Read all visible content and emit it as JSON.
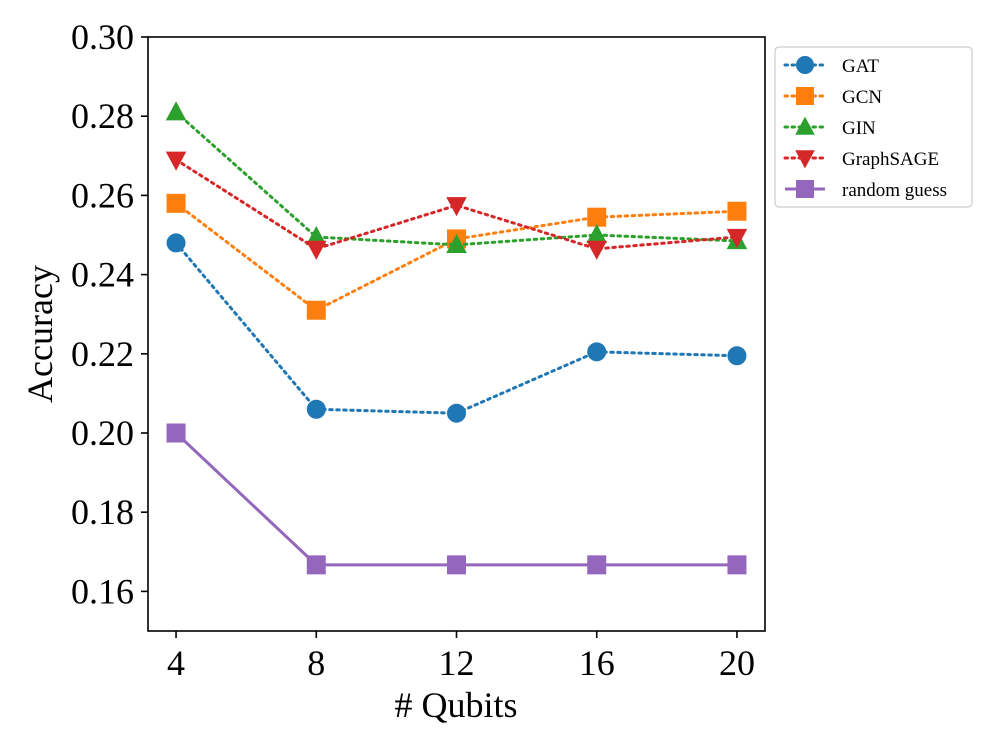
{
  "chart_data": {
    "type": "line",
    "title": "",
    "xlabel": "# Qubits",
    "ylabel": "Accuracy",
    "x": [
      4,
      8,
      12,
      16,
      20
    ],
    "x_tick_labels": [
      "4",
      "8",
      "12",
      "16",
      "20"
    ],
    "y_ticks": [
      0.16,
      0.18,
      0.2,
      0.22,
      0.24,
      0.26,
      0.28,
      0.3
    ],
    "y_tick_labels": [
      "0.16",
      "0.18",
      "0.20",
      "0.22",
      "0.24",
      "0.26",
      "0.28",
      "0.30"
    ],
    "xlim": [
      3.2,
      20.8
    ],
    "ylim": [
      0.15,
      0.3
    ],
    "grid": false,
    "legend_position": "outside-top-right",
    "series": [
      {
        "name": "GAT",
        "values": [
          0.248,
          0.206,
          0.205,
          0.2205,
          0.2195
        ],
        "color": "#1f77b4",
        "marker": "circle",
        "line_style": "dotted"
      },
      {
        "name": "GCN",
        "values": [
          0.258,
          0.231,
          0.249,
          0.2545,
          0.256
        ],
        "color": "#ff7f0e",
        "marker": "square",
        "line_style": "dotted"
      },
      {
        "name": "GIN",
        "values": [
          0.281,
          0.2495,
          0.2475,
          0.25,
          0.2485
        ],
        "color": "#2ca02c",
        "marker": "triangle-up",
        "line_style": "dotted"
      },
      {
        "name": "GraphSAGE",
        "values": [
          0.269,
          0.2465,
          0.2575,
          0.2465,
          0.2495
        ],
        "color": "#d62728",
        "marker": "triangle-down",
        "line_style": "dotted"
      },
      {
        "name": "random guess",
        "values": [
          0.2,
          0.1667,
          0.1667,
          0.1667,
          0.1667
        ],
        "color": "#9467bd",
        "marker": "square",
        "line_style": "solid"
      }
    ]
  }
}
